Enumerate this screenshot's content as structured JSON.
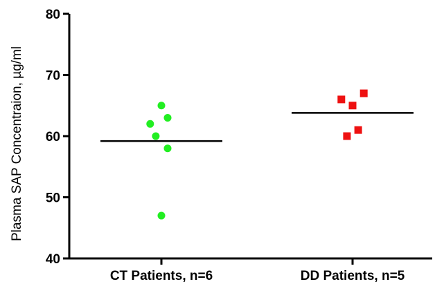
{
  "chart_data": {
    "type": "scatter",
    "ylabel": "Plasma SAP Concentraion, µg/ml",
    "ylim": [
      40,
      80
    ],
    "yticks": [
      40,
      50,
      60,
      70,
      80
    ],
    "categories": [
      "CT Patients, n=6",
      "DD Patients, n=5"
    ],
    "series": [
      {
        "category": "CT Patients, n=6",
        "color": "#22ee22",
        "marker": "circle",
        "points": [
          {
            "x_offset": 0.0,
            "y": 65
          },
          {
            "x_offset": 0.5,
            "y": 63
          },
          {
            "x_offset": -0.9,
            "y": 62
          },
          {
            "x_offset": -0.45,
            "y": 60
          },
          {
            "x_offset": 0.5,
            "y": 58
          },
          {
            "x_offset": 0.0,
            "y": 47
          }
        ],
        "mean": 59.2
      },
      {
        "category": "DD Patients, n=5",
        "color": "#ee1111",
        "marker": "square",
        "points": [
          {
            "x_offset": -0.9,
            "y": 66
          },
          {
            "x_offset": 0.9,
            "y": 67
          },
          {
            "x_offset": 0.0,
            "y": 65
          },
          {
            "x_offset": 0.45,
            "y": 61
          },
          {
            "x_offset": -0.45,
            "y": 60
          }
        ],
        "mean": 63.8
      }
    ]
  }
}
